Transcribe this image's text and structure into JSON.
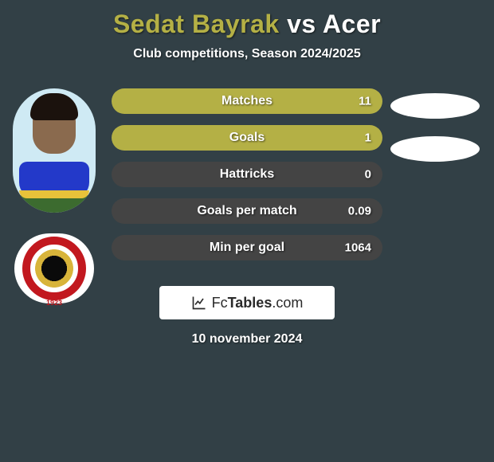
{
  "background_color": "#324046",
  "title": {
    "player1": "Sedat Bayrak",
    "vs": "vs",
    "player2": "Acer",
    "player1_color": "#b4b045",
    "vs_color": "#ffffff",
    "player2_color": "#ffffff",
    "fontsize": 32
  },
  "subtitle": {
    "text": "Club competitions, Season 2024/2025",
    "color": "#ffffff",
    "fontsize": 16
  },
  "player1_visual": {
    "sky_color": "#cfeaf4",
    "jersey_color": "#2339c9",
    "jersey_trim_color": "#e8c23a",
    "skin_color": "#8a6a4e",
    "hair_color": "#1b120d",
    "grass_color": "#3c6b2f"
  },
  "club_badge": {
    "ring_color": "#c2181f",
    "inner_black": "#0a0a0a",
    "inner_gold": "#d8b43a",
    "background": "#ffffff",
    "year": "1923"
  },
  "blank_ellipse_color": "#ffffff",
  "bars": {
    "fill_color": "#b4b045",
    "empty_color": "#444444",
    "text_color": "#ffffff",
    "label_fontsize": 16,
    "value_fontsize": 15,
    "height": 32,
    "radius": 16,
    "items": [
      {
        "label": "Matches",
        "value": "11",
        "fill_pct": 100
      },
      {
        "label": "Goals",
        "value": "1",
        "fill_pct": 100
      },
      {
        "label": "Hattricks",
        "value": "0",
        "fill_pct": 0
      },
      {
        "label": "Goals per match",
        "value": "0.09",
        "fill_pct": 0
      },
      {
        "label": "Min per goal",
        "value": "1064",
        "fill_pct": 0
      }
    ]
  },
  "footer": {
    "brand_nonbold": "Fc",
    "brand_bold": "Tables",
    "brand_suffix": ".com",
    "badge_bg": "#ffffff",
    "text_color": "#2a2a2a",
    "icon_color": "#2a2a2a"
  },
  "date": {
    "text": "10 november 2024",
    "color": "#ffffff",
    "fontsize": 16
  }
}
